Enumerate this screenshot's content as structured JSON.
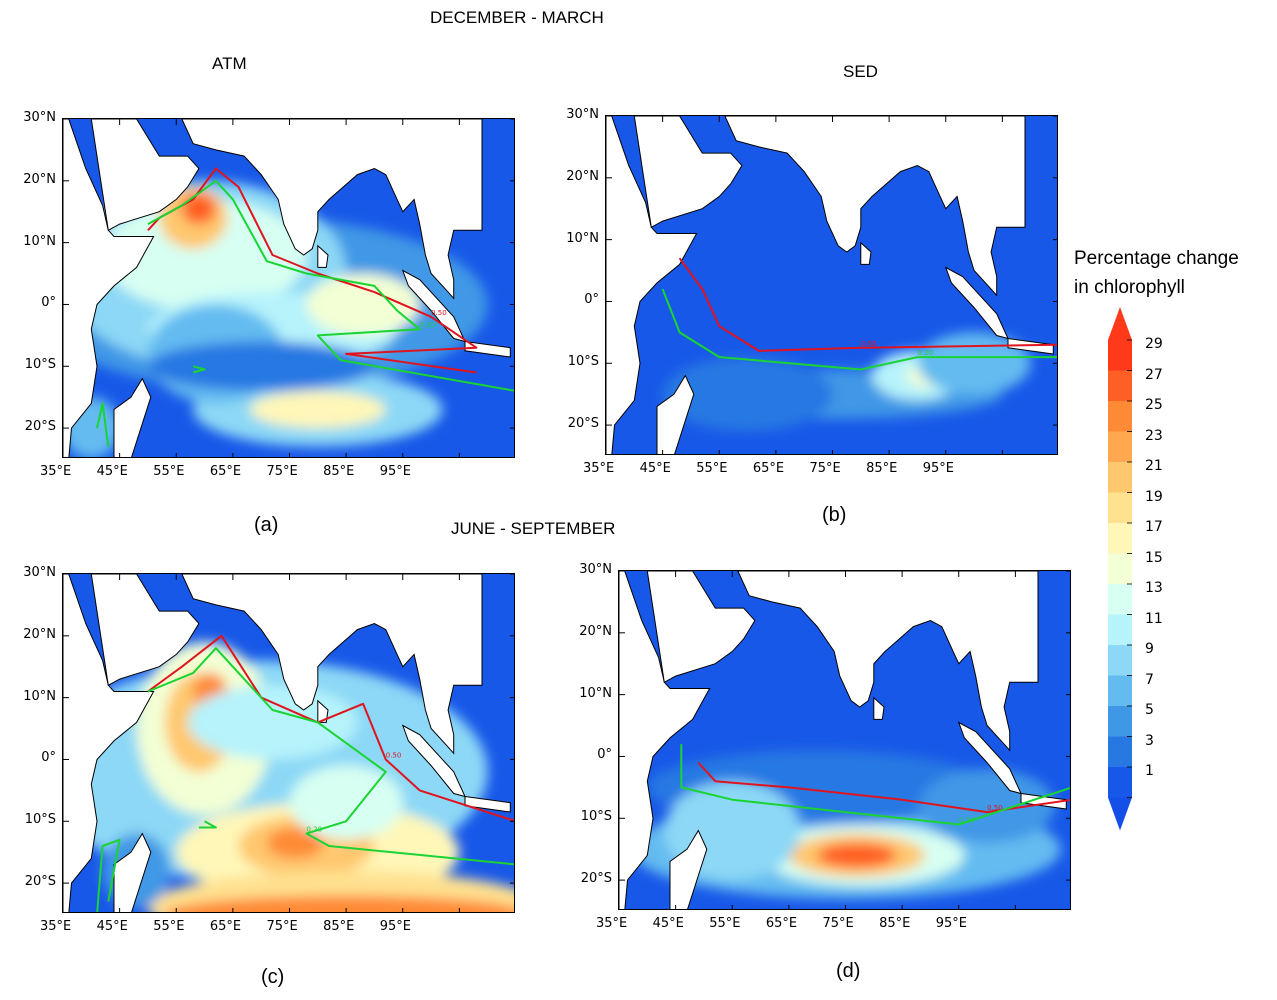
{
  "titles": {
    "season_top": "DECEMBER - MARCH",
    "season_bottom": "JUNE - SEPTEMBER",
    "col_left": "ATM",
    "col_right": "SED"
  },
  "panels": [
    {
      "label": "(a)",
      "season": "DECEMBER - MARCH",
      "experiment": "ATM"
    },
    {
      "label": "(b)",
      "season": "DECEMBER - MARCH",
      "experiment": "SED"
    },
    {
      "label": "(c)",
      "season": "JUNE - SEPTEMBER",
      "experiment": "ATM"
    },
    {
      "label": "(d)",
      "season": "JUNE - SEPTEMBER",
      "experiment": "SED"
    }
  ],
  "axes": {
    "lat_ticks": [
      "30°N",
      "20°N",
      "10°N",
      "0°",
      "10°S",
      "20°S"
    ],
    "lon_ticks": [
      "35°E",
      "45°E",
      "55°E",
      "65°E",
      "75°E",
      "85°E",
      "95°E"
    ]
  },
  "contour_labels": {
    "red": "0.50",
    "green": "0.20"
  },
  "colorbar": {
    "title_line1": "Percentage change",
    "title_line2": "in chlorophyll",
    "labels": [
      "29",
      "27",
      "25",
      "23",
      "21",
      "19",
      "17",
      "15",
      "13",
      "11",
      "9",
      "7",
      "5",
      "3",
      "1"
    ],
    "colors": [
      "#ff3a1a",
      "#ff5f24",
      "#ff8a35",
      "#ffa84f",
      "#ffc76e",
      "#ffe190",
      "#fff7b8",
      "#f3ffd4",
      "#d7fff2",
      "#b6f3fb",
      "#8cd8f6",
      "#63bbf0",
      "#3f98e6",
      "#2878e3",
      "#1858e8"
    ],
    "end_top_color": "#ff3a1a",
    "end_bottom_color": "#1450e8"
  },
  "colors": {
    "land": "#ffffff",
    "ocean_base": "#1858e8",
    "red_contour": "#e0141e",
    "green_contour": "#19d432"
  }
}
